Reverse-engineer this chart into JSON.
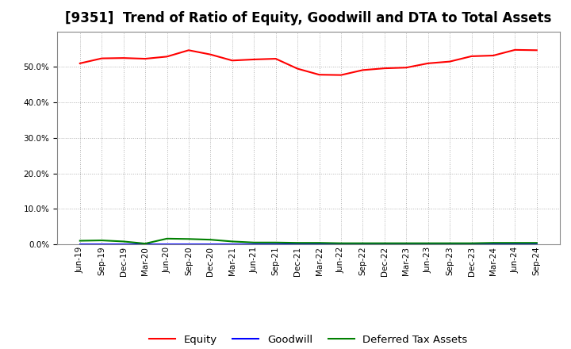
{
  "title": "[9351]  Trend of Ratio of Equity, Goodwill and DTA to Total Assets",
  "x_labels": [
    "Jun-19",
    "Sep-19",
    "Dec-19",
    "Mar-20",
    "Jun-20",
    "Sep-20",
    "Dec-20",
    "Mar-21",
    "Jun-21",
    "Sep-21",
    "Dec-21",
    "Mar-22",
    "Jun-22",
    "Sep-22",
    "Dec-22",
    "Mar-23",
    "Jun-23",
    "Sep-23",
    "Dec-23",
    "Mar-24",
    "Jun-24",
    "Sep-24"
  ],
  "equity": [
    0.51,
    0.524,
    0.525,
    0.523,
    0.529,
    0.547,
    0.535,
    0.518,
    0.521,
    0.523,
    0.495,
    0.478,
    0.477,
    0.491,
    0.496,
    0.498,
    0.51,
    0.515,
    0.53,
    0.532,
    0.548,
    0.547
  ],
  "goodwill": [
    0.0,
    0.0,
    0.0,
    0.0,
    0.0,
    0.0,
    0.0,
    0.0,
    0.0,
    0.0,
    0.0,
    0.0,
    0.0,
    0.0,
    0.0,
    0.0,
    0.0,
    0.0,
    0.0,
    0.0,
    0.0,
    0.0
  ],
  "dta": [
    0.01,
    0.011,
    0.008,
    0.002,
    0.016,
    0.015,
    0.013,
    0.008,
    0.005,
    0.005,
    0.004,
    0.004,
    0.003,
    0.003,
    0.003,
    0.003,
    0.003,
    0.003,
    0.003,
    0.004,
    0.004,
    0.004
  ],
  "equity_color": "#ff0000",
  "goodwill_color": "#0000ff",
  "dta_color": "#008000",
  "background_color": "#ffffff",
  "plot_bg_color": "#ffffff",
  "grid_color": "#b0b0b0",
  "ylim": [
    0.0,
    0.6
  ],
  "yticks": [
    0.0,
    0.1,
    0.2,
    0.3,
    0.4,
    0.5
  ],
  "legend_labels": [
    "Equity",
    "Goodwill",
    "Deferred Tax Assets"
  ],
  "title_fontsize": 12,
  "tick_fontsize": 7.5,
  "legend_fontsize": 9.5
}
